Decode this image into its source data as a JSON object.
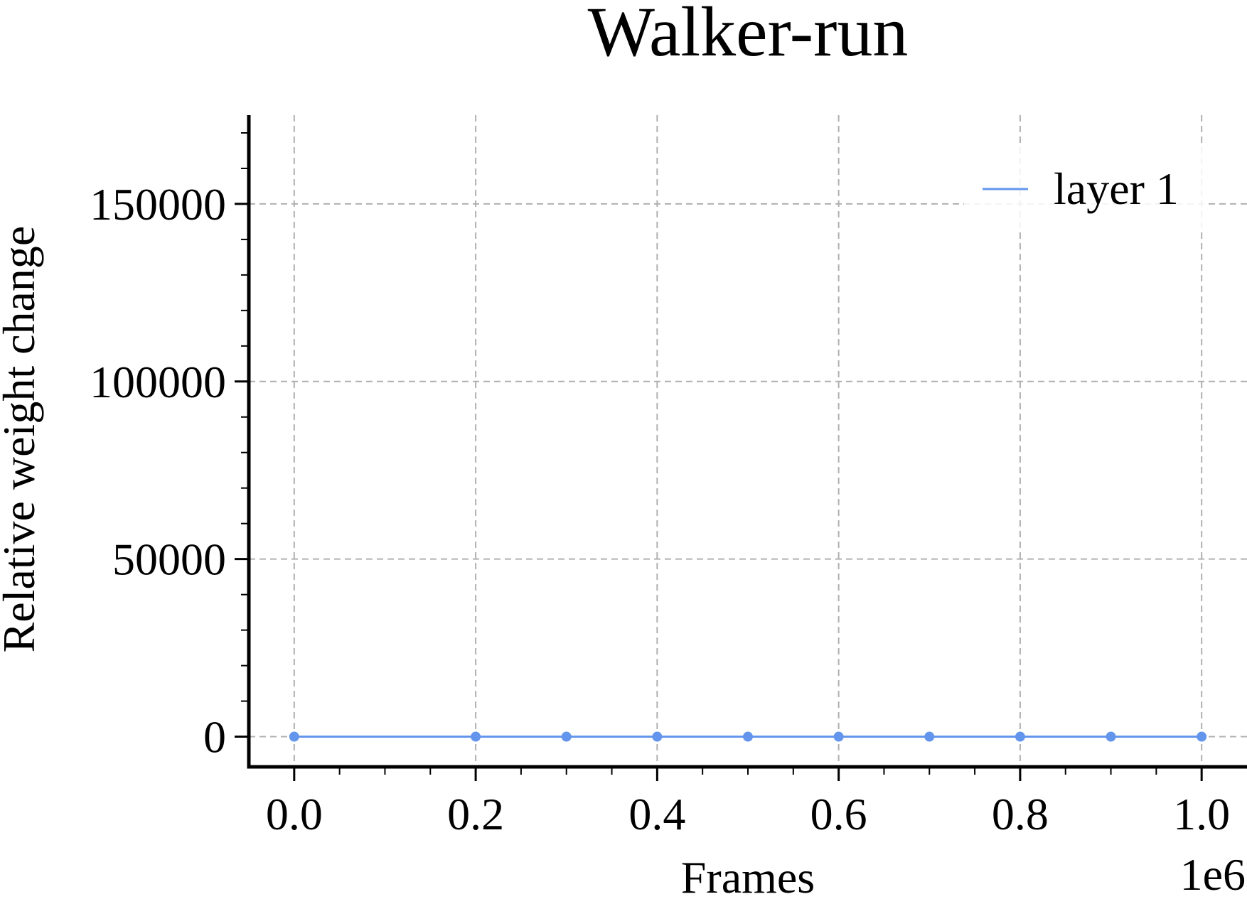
{
  "chart_data": {
    "type": "line",
    "title": "Walker-run",
    "xlabel": "Frames",
    "ylabel": "Relative weight change",
    "x_offset_label": "1e6",
    "x_scale": 1000000,
    "xlim": [
      -0.05,
      1.05
    ],
    "ylim": [
      -8500,
      175000
    ],
    "x_ticks": [
      0.0,
      0.2,
      0.4,
      0.6,
      0.8,
      1.0
    ],
    "x_tick_labels": [
      "0.0",
      "0.2",
      "0.4",
      "0.6",
      "0.8",
      "1.0"
    ],
    "y_ticks": [
      0,
      50000,
      100000,
      150000
    ],
    "y_tick_labels": [
      "0",
      "50000",
      "100000",
      "150000"
    ],
    "grid": true,
    "legend_position": "top-right",
    "series": [
      {
        "name": "layer 1",
        "color": "#6495ED",
        "x": [
          0.0,
          0.2,
          0.3,
          0.4,
          0.5,
          0.6,
          0.7,
          0.8,
          0.9,
          1.0
        ],
        "y": [
          0,
          0,
          0,
          0,
          0,
          0,
          0,
          0,
          0,
          0
        ]
      }
    ]
  }
}
